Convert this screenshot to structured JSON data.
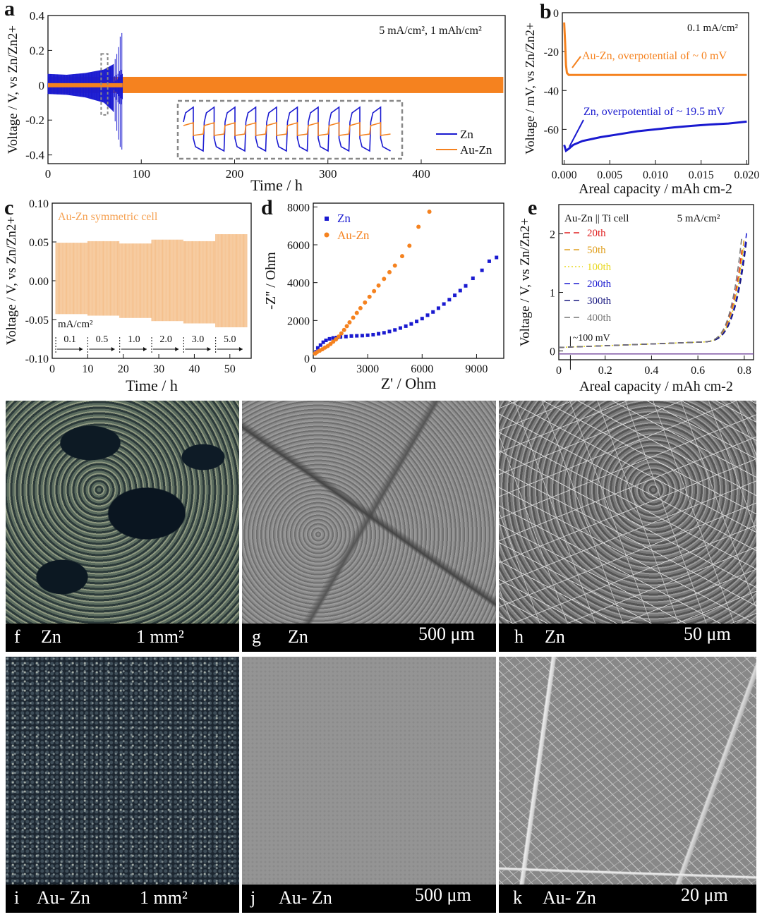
{
  "chart_data": [
    {
      "id": "a",
      "panel_letter": "a",
      "type": "line",
      "annotation": "5 mA/cm², 1 mAh/cm²",
      "xlabel": "Time / h",
      "ylabel": "Voltage / V, vs Zn/Zn2+",
      "xlim": [
        0,
        490
      ],
      "ylim": [
        -0.45,
        0.4
      ],
      "xticks": [
        0,
        100,
        200,
        300,
        400
      ],
      "yticks": [
        -0.4,
        -0.2,
        0.0,
        0.2,
        0.4
      ],
      "series": [
        {
          "name": "Zn",
          "color": "#1a1ad0",
          "envelope": [
            [
              0,
              0.065,
              -0.05
            ],
            [
              20,
              0.06,
              -0.055
            ],
            [
              40,
              0.07,
              -0.07
            ],
            [
              60,
              0.09,
              -0.1
            ],
            [
              70,
              0.12,
              -0.15
            ],
            [
              75,
              0.2,
              -0.3
            ],
            [
              78,
              0.3,
              -0.37
            ],
            [
              80,
              0.3,
              -0.37
            ]
          ]
        },
        {
          "name": "Au-Zn",
          "color": "#f5821f",
          "envelope": [
            [
              0,
              0.048,
              -0.045
            ],
            [
              100,
              0.048,
              -0.045
            ],
            [
              200,
              0.048,
              -0.045
            ],
            [
              300,
              0.048,
              -0.045
            ],
            [
              400,
              0.048,
              -0.045
            ],
            [
              488,
              0.048,
              -0.045
            ]
          ]
        }
      ],
      "legend": [
        "Zn",
        "Au-Zn"
      ],
      "legend_position": "bottom-right"
    },
    {
      "id": "b",
      "panel_letter": "b",
      "type": "line",
      "annotation": "0.1 mA/cm²",
      "xlabel": "Areal capacity / mAh cm-2",
      "ylabel": "Voltage / mV, vs Zn/Zn2+",
      "xlim": [
        -0.0002,
        0.0202
      ],
      "ylim": [
        -78,
        0
      ],
      "xticks": [
        0.0,
        0.005,
        0.01,
        0.015,
        0.02
      ],
      "xtick_labels": [
        "0.000",
        "0.005",
        "0.010",
        "0.015",
        "0.020"
      ],
      "yticks": [
        -60,
        -40,
        -20,
        0
      ],
      "ytick_labels": [
        "-60",
        "-40",
        "-20",
        "0"
      ],
      "series": [
        {
          "name": "Au-Zn",
          "color": "#f5821f",
          "x": [
            0,
            0.0001,
            0.0002,
            0.0003,
            0.0005,
            0.001,
            0.002,
            0.005,
            0.01,
            0.015,
            0.02
          ],
          "y": [
            -5,
            -15,
            -27,
            -31,
            -32,
            -32,
            -32,
            -32,
            -32,
            -32,
            -32
          ]
        },
        {
          "name": "Zn",
          "color": "#1a1ad0",
          "x": [
            0,
            0.0002,
            0.0005,
            0.001,
            0.002,
            0.004,
            0.006,
            0.008,
            0.01,
            0.012,
            0.014,
            0.016,
            0.018,
            0.02
          ],
          "y": [
            -68,
            -71,
            -70,
            -68,
            -66,
            -64,
            -62.5,
            -61,
            -60,
            -59,
            -58.2,
            -57.5,
            -57,
            -56
          ]
        }
      ],
      "annotations": [
        "Au-Zn, overpotential of ~ 0 mV",
        "Zn, overpotential of ~ 19.5 mV"
      ]
    },
    {
      "id": "c",
      "panel_letter": "c",
      "type": "line",
      "annotation": "Au-Zn symmetric cell",
      "xlabel": "Time / h",
      "ylabel": "Voltage / V, vs Zn/Zn2+",
      "xlim": [
        0,
        56
      ],
      "ylim": [
        -0.1,
        0.1
      ],
      "xticks": [
        0,
        10,
        20,
        30,
        40,
        50
      ],
      "yticks": [
        -0.1,
        -0.05,
        0.0,
        0.05,
        0.1
      ],
      "ytick_labels": [
        "-0.10",
        "-0.05",
        "0.00",
        "0.05",
        "0.10"
      ],
      "series": [
        {
          "name": "Au-Zn",
          "color": "#f5c08c",
          "segments": [
            {
              "t0": 1,
              "t1": 10,
              "upper": 0.049,
              "lower": -0.043
            },
            {
              "t0": 10,
              "t1": 19,
              "upper": 0.051,
              "lower": -0.045
            },
            {
              "t0": 19,
              "t1": 28,
              "upper": 0.048,
              "lower": -0.048
            },
            {
              "t0": 28,
              "t1": 37,
              "upper": 0.053,
              "lower": -0.052
            },
            {
              "t0": 37,
              "t1": 46,
              "upper": 0.051,
              "lower": -0.055
            },
            {
              "t0": 46,
              "t1": 55,
              "upper": 0.06,
              "lower": -0.06
            }
          ]
        }
      ],
      "rate_unit": "mA/cm²",
      "rate_labels": [
        "0.1",
        "0.5",
        "1.0",
        "2.0",
        "3.0",
        "5.0"
      ],
      "rate_starts": [
        1,
        10,
        19,
        28,
        37,
        46
      ]
    },
    {
      "id": "d",
      "panel_letter": "d",
      "type": "scatter",
      "xlabel": "Z' / Ohm",
      "ylabel": "-Z'' / Ohm",
      "xlim": [
        0,
        10500
      ],
      "ylim": [
        0,
        8200
      ],
      "xticks": [
        0,
        3000,
        6000,
        9000
      ],
      "yticks": [
        0,
        2000,
        4000,
        6000,
        8000
      ],
      "series": [
        {
          "name": "Zn",
          "color": "#1a1ad0",
          "marker": "square",
          "x": [
            150,
            250,
            400,
            550,
            700,
            900,
            1100,
            1300,
            1500,
            1800,
            2100,
            2400,
            2700,
            3000,
            3300,
            3600,
            3900,
            4200,
            4500,
            4800,
            5100,
            5400,
            5700,
            6000,
            6300,
            6600,
            6900,
            7200,
            7500,
            7800,
            8100,
            8400,
            8800,
            9300,
            9700,
            10100
          ],
          "y": [
            350,
            550,
            700,
            850,
            950,
            1030,
            1080,
            1100,
            1130,
            1150,
            1180,
            1190,
            1200,
            1220,
            1250,
            1300,
            1350,
            1420,
            1500,
            1600,
            1700,
            1820,
            1950,
            2100,
            2280,
            2450,
            2650,
            2870,
            3100,
            3330,
            3580,
            3830,
            4230,
            4650,
            5130,
            5330
          ]
        },
        {
          "name": "Au-Zn",
          "color": "#f5821f",
          "marker": "circle",
          "x": [
            100,
            200,
            350,
            500,
            650,
            800,
            950,
            1100,
            1250,
            1400,
            1550,
            1700,
            1850,
            2000,
            2200,
            2400,
            2600,
            2850,
            3100,
            3350,
            3600,
            3900,
            4200,
            4500,
            4900,
            5300,
            5800,
            6400
          ],
          "y": [
            250,
            320,
            400,
            480,
            570,
            650,
            760,
            880,
            1000,
            1150,
            1320,
            1500,
            1700,
            1900,
            2150,
            2400,
            2650,
            2950,
            3250,
            3550,
            3850,
            4200,
            4550,
            4900,
            5400,
            5950,
            6950,
            7750
          ]
        }
      ],
      "legend": [
        "Zn",
        "Au-Zn"
      ],
      "legend_position": "top-left"
    },
    {
      "id": "e",
      "panel_letter": "e",
      "type": "line",
      "annotation": "5 mA/cm²",
      "legend_title": "Au-Zn || Ti cell",
      "xlabel": "Areal capacity / mAh cm-2",
      "ylabel": "Voltage / V, vs Zn/Zn2+",
      "xlim": [
        0,
        0.84
      ],
      "ylim": [
        -0.15,
        2.5
      ],
      "xticks": [
        0.0,
        0.2,
        0.4,
        0.6,
        0.8
      ],
      "yticks": [
        0,
        1,
        2
      ],
      "series": [
        {
          "name": "20th",
          "color": "#e02020",
          "dash": "8,5"
        },
        {
          "name": "50th",
          "color": "#e0a020",
          "dash": "8,5"
        },
        {
          "name": "100th",
          "color": "#e8d820",
          "dash": "2,3"
        },
        {
          "name": "200th",
          "color": "#1a1ad0",
          "dash": "8,5"
        },
        {
          "name": "300th",
          "color": "#1a1a80",
          "dash": "8,5"
        },
        {
          "name": "400th",
          "color": "#777777",
          "dash": "8,5"
        }
      ],
      "annotations": [
        "~100 mV"
      ]
    }
  ],
  "photos": [
    {
      "letter": "f",
      "sample": "Zn",
      "scale": "1 mm²"
    },
    {
      "letter": "g",
      "sample": "Zn",
      "scale": "500 μm"
    },
    {
      "letter": "h",
      "sample": "Zn",
      "scale": "50 μm"
    },
    {
      "letter": "i",
      "sample": "Au- Zn",
      "scale": "1 mm²"
    },
    {
      "letter": "j",
      "sample": "Au- Zn",
      "scale": "500 μm"
    },
    {
      "letter": "k",
      "sample": "Au- Zn",
      "scale": "20 μm"
    }
  ]
}
